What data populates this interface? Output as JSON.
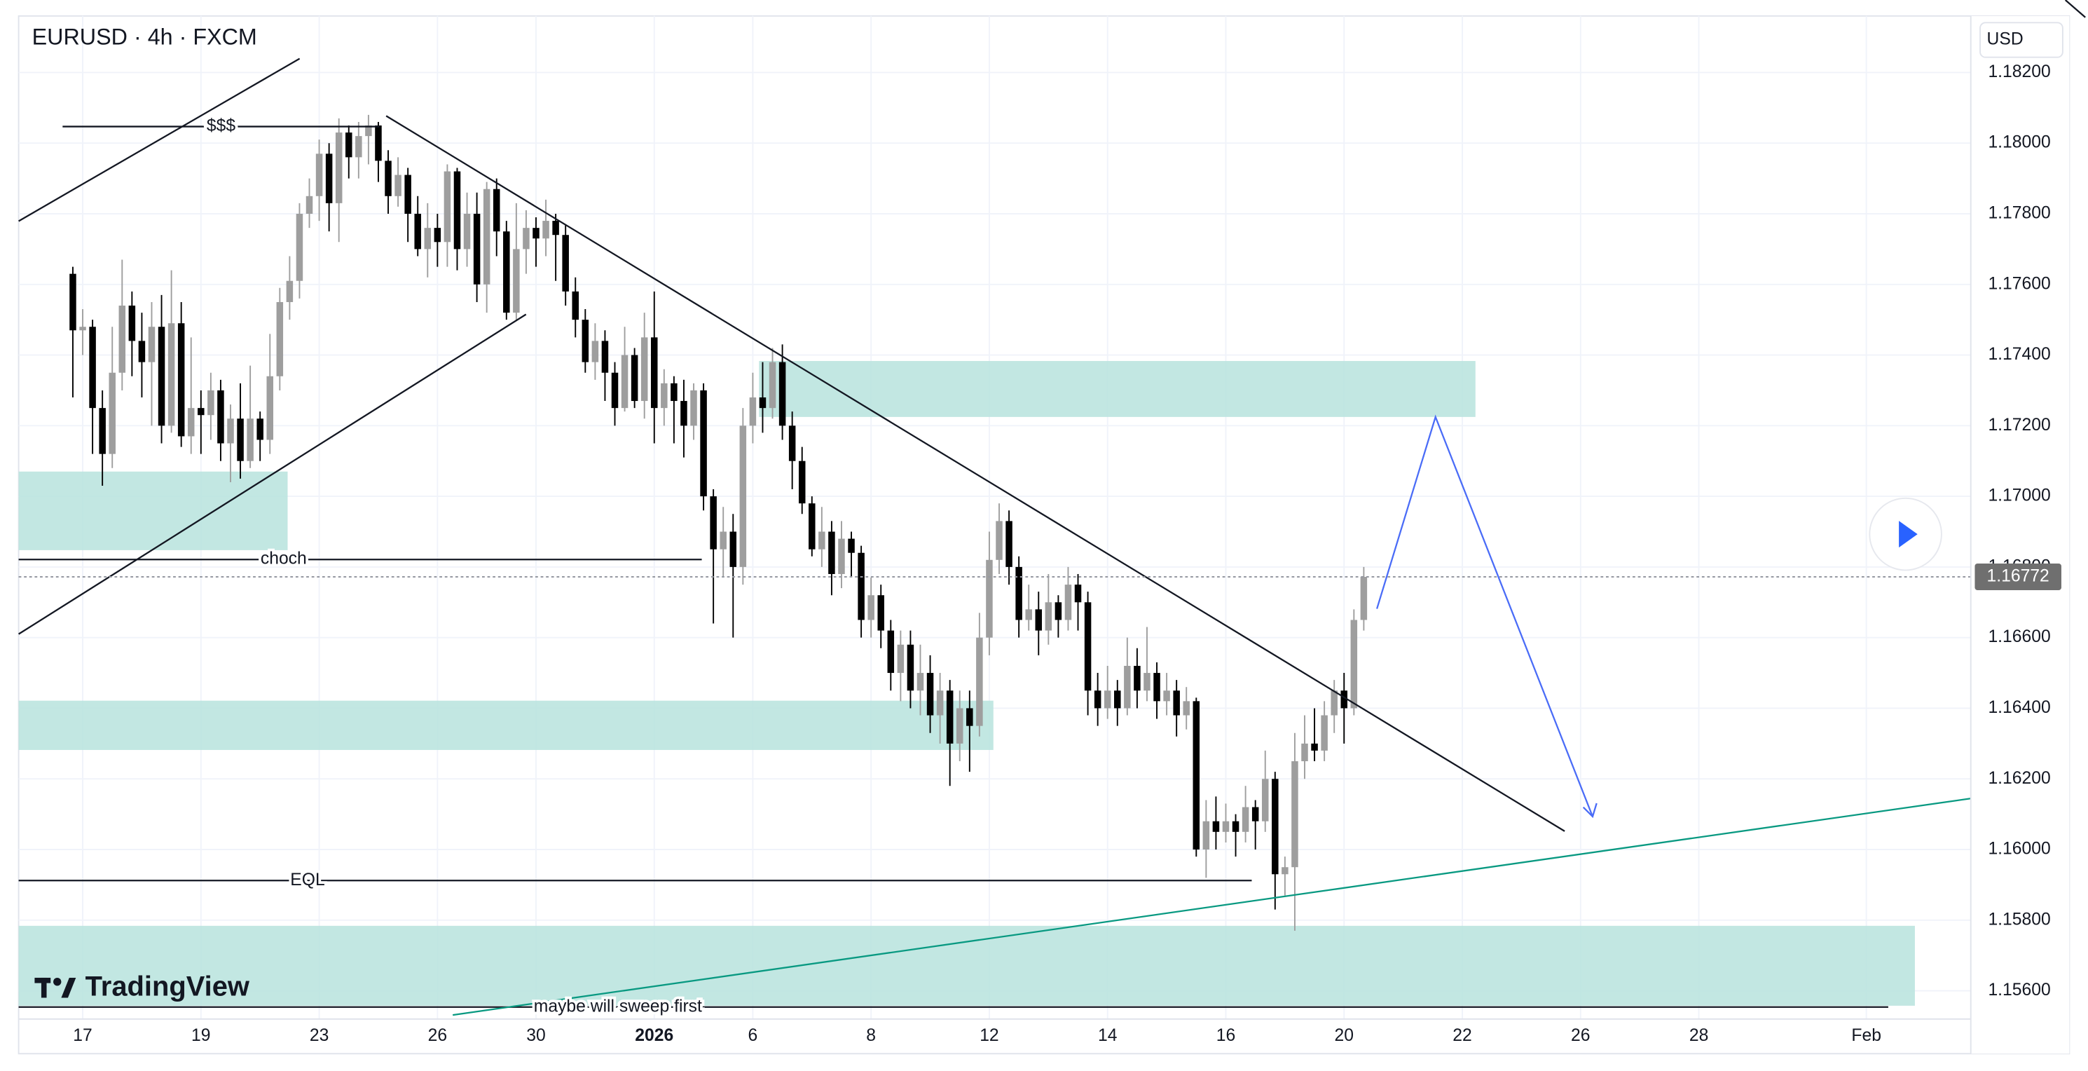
{
  "chart_data": {
    "type": "candlestick",
    "title": "EURUSD · 4h · FXCM",
    "currency": "USD",
    "watermark": "TradingView",
    "annotations": [
      "$$$",
      "choch",
      "EQL",
      "maybe will sweep first"
    ],
    "last_price": 1.16772,
    "up_color": "#9e9e9e",
    "down_color": "#000000",
    "grid": true,
    "xlim": [
      -5.5,
      192.6
    ],
    "xticks": [
      {
        "value": 1,
        "label": "17"
      },
      {
        "value": 13,
        "label": "19"
      },
      {
        "value": 25,
        "label": "23"
      },
      {
        "value": 37,
        "label": "26"
      },
      {
        "value": 47,
        "label": "30"
      },
      {
        "value": 59,
        "label": "2026"
      },
      {
        "value": 69,
        "label": "6"
      },
      {
        "value": 81,
        "label": "8"
      },
      {
        "value": 93,
        "label": "12"
      },
      {
        "value": 105,
        "label": "14"
      },
      {
        "value": 117,
        "label": "16"
      },
      {
        "value": 129,
        "label": "20"
      },
      {
        "value": 141,
        "label": "22"
      },
      {
        "value": 153,
        "label": "26"
      },
      {
        "value": 165,
        "label": "28"
      },
      {
        "value": 182,
        "label": "Feb"
      }
    ],
    "ylim": [
      1.1552,
      1.1836
    ],
    "yticks": [
      {
        "value": 1.182,
        "label": "1.18200"
      },
      {
        "value": 1.18,
        "label": "1.18000"
      },
      {
        "value": 1.178,
        "label": "1.17800"
      },
      {
        "value": 1.176,
        "label": "1.17600"
      },
      {
        "value": 1.174,
        "label": "1.17400"
      },
      {
        "value": 1.172,
        "label": "1.17200"
      },
      {
        "value": 1.17,
        "label": "1.17000"
      },
      {
        "value": 1.168,
        "label": "1.16800"
      },
      {
        "value": 1.166,
        "label": "1.16600"
      },
      {
        "value": 1.164,
        "label": "1.16400"
      },
      {
        "value": 1.162,
        "label": "1.16200"
      },
      {
        "value": 1.16,
        "label": "1.16000"
      },
      {
        "value": 1.158,
        "label": "1.15800"
      },
      {
        "value": 1.156,
        "label": "1.15600"
      }
    ],
    "ohlc": [
      [
        1.1763,
        1.1765,
        1.1728,
        1.1747
      ],
      [
        1.1747,
        1.1753,
        1.174,
        1.1748
      ],
      [
        1.1748,
        1.175,
        1.1712,
        1.1725
      ],
      [
        1.1725,
        1.173,
        1.1703,
        1.1712
      ],
      [
        1.1712,
        1.1748,
        1.1708,
        1.1735
      ],
      [
        1.1735,
        1.1767,
        1.173,
        1.1754
      ],
      [
        1.1754,
        1.1758,
        1.1734,
        1.1744
      ],
      [
        1.1744,
        1.1752,
        1.1728,
        1.1738
      ],
      [
        1.1738,
        1.1755,
        1.172,
        1.1748
      ],
      [
        1.1748,
        1.1757,
        1.1715,
        1.172
      ],
      [
        1.172,
        1.1764,
        1.1718,
        1.1749
      ],
      [
        1.1749,
        1.1755,
        1.1714,
        1.1717
      ],
      [
        1.1717,
        1.1745,
        1.1712,
        1.1725
      ],
      [
        1.1725,
        1.173,
        1.1712,
        1.1723
      ],
      [
        1.1723,
        1.1735,
        1.1716,
        1.173
      ],
      [
        1.173,
        1.1733,
        1.171,
        1.1715
      ],
      [
        1.1715,
        1.1726,
        1.1704,
        1.1722
      ],
      [
        1.1722,
        1.1732,
        1.1705,
        1.171
      ],
      [
        1.171,
        1.1737,
        1.1708,
        1.1722
      ],
      [
        1.1722,
        1.1724,
        1.171,
        1.1716
      ],
      [
        1.1716,
        1.1746,
        1.1712,
        1.1734
      ],
      [
        1.1734,
        1.1759,
        1.173,
        1.1755
      ],
      [
        1.1755,
        1.1768,
        1.175,
        1.1761
      ],
      [
        1.1761,
        1.1783,
        1.1756,
        1.178
      ],
      [
        1.178,
        1.179,
        1.1776,
        1.1785
      ],
      [
        1.1785,
        1.1801,
        1.1778,
        1.1797
      ],
      [
        1.1797,
        1.18,
        1.1775,
        1.1783
      ],
      [
        1.1783,
        1.1807,
        1.1772,
        1.1803
      ],
      [
        1.1803,
        1.1805,
        1.179,
        1.1796
      ],
      [
        1.1796,
        1.1806,
        1.179,
        1.1802
      ],
      [
        1.1802,
        1.1808,
        1.1794,
        1.1805
      ],
      [
        1.1805,
        1.1806,
        1.1789,
        1.1795
      ],
      [
        1.1795,
        1.1798,
        1.178,
        1.1785
      ],
      [
        1.1785,
        1.1796,
        1.1782,
        1.1791
      ],
      [
        1.1791,
        1.1793,
        1.1772,
        1.178
      ],
      [
        1.178,
        1.1785,
        1.1768,
        1.177
      ],
      [
        1.177,
        1.1783,
        1.1762,
        1.1776
      ],
      [
        1.1776,
        1.178,
        1.1765,
        1.1772
      ],
      [
        1.1772,
        1.1794,
        1.1765,
        1.1792
      ],
      [
        1.1792,
        1.1793,
        1.1764,
        1.177
      ],
      [
        1.177,
        1.1786,
        1.1765,
        1.178
      ],
      [
        1.178,
        1.1786,
        1.1755,
        1.176
      ],
      [
        1.176,
        1.1789,
        1.1752,
        1.1787
      ],
      [
        1.1787,
        1.179,
        1.1768,
        1.1775
      ],
      [
        1.1775,
        1.1778,
        1.175,
        1.1752
      ],
      [
        1.1752,
        1.1783,
        1.175,
        1.177
      ],
      [
        1.177,
        1.1781,
        1.1763,
        1.1776
      ],
      [
        1.1776,
        1.1779,
        1.1765,
        1.1773
      ],
      [
        1.1773,
        1.1784,
        1.1768,
        1.1778
      ],
      [
        1.1778,
        1.178,
        1.1761,
        1.1774
      ],
      [
        1.1774,
        1.1777,
        1.1754,
        1.1758
      ],
      [
        1.1758,
        1.1762,
        1.1745,
        1.175
      ],
      [
        1.175,
        1.1753,
        1.1735,
        1.1738
      ],
      [
        1.1738,
        1.1749,
        1.1733,
        1.1744
      ],
      [
        1.1744,
        1.1747,
        1.1727,
        1.1735
      ],
      [
        1.1735,
        1.1738,
        1.172,
        1.1725
      ],
      [
        1.1725,
        1.1748,
        1.1724,
        1.174
      ],
      [
        1.174,
        1.1742,
        1.1725,
        1.1727
      ],
      [
        1.1727,
        1.1752,
        1.1722,
        1.1745
      ],
      [
        1.1745,
        1.1758,
        1.1715,
        1.1725
      ],
      [
        1.1725,
        1.1736,
        1.172,
        1.1732
      ],
      [
        1.1732,
        1.1734,
        1.1715,
        1.1727
      ],
      [
        1.1727,
        1.1733,
        1.1711,
        1.172
      ],
      [
        1.172,
        1.1732,
        1.1716,
        1.173
      ],
      [
        1.173,
        1.1732,
        1.1696,
        1.17
      ],
      [
        1.17,
        1.1702,
        1.1664,
        1.1685
      ],
      [
        1.1685,
        1.1697,
        1.1677,
        1.169
      ],
      [
        1.169,
        1.1695,
        1.166,
        1.168
      ],
      [
        1.168,
        1.1725,
        1.1675,
        1.172
      ],
      [
        1.172,
        1.1735,
        1.1715,
        1.1728
      ],
      [
        1.1728,
        1.1738,
        1.1718,
        1.1725
      ],
      [
        1.1725,
        1.1742,
        1.1722,
        1.1738
      ],
      [
        1.1738,
        1.1743,
        1.1716,
        1.172
      ],
      [
        1.172,
        1.1724,
        1.1702,
        1.171
      ],
      [
        1.171,
        1.1714,
        1.1695,
        1.1698
      ],
      [
        1.1698,
        1.17,
        1.1683,
        1.1685
      ],
      [
        1.1685,
        1.1697,
        1.168,
        1.169
      ],
      [
        1.169,
        1.1693,
        1.1672,
        1.1678
      ],
      [
        1.1678,
        1.1693,
        1.1674,
        1.1688
      ],
      [
        1.1688,
        1.169,
        1.1677,
        1.1684
      ],
      [
        1.1684,
        1.1686,
        1.166,
        1.1665
      ],
      [
        1.1665,
        1.1677,
        1.166,
        1.1672
      ],
      [
        1.1672,
        1.1675,
        1.1657,
        1.1662
      ],
      [
        1.1662,
        1.1665,
        1.1645,
        1.165
      ],
      [
        1.165,
        1.1662,
        1.1642,
        1.1658
      ],
      [
        1.1658,
        1.1662,
        1.164,
        1.1645
      ],
      [
        1.1645,
        1.1658,
        1.1638,
        1.165
      ],
      [
        1.165,
        1.1655,
        1.1633,
        1.1638
      ],
      [
        1.1638,
        1.165,
        1.163,
        1.1645
      ],
      [
        1.1645,
        1.1648,
        1.1618,
        1.163
      ],
      [
        1.163,
        1.1645,
        1.1625,
        1.164
      ],
      [
        1.164,
        1.1645,
        1.1622,
        1.1635
      ],
      [
        1.1635,
        1.1667,
        1.1632,
        1.166
      ],
      [
        1.166,
        1.169,
        1.1655,
        1.1682
      ],
      [
        1.1682,
        1.1698,
        1.1678,
        1.1693
      ],
      [
        1.1693,
        1.1696,
        1.1675,
        1.168
      ],
      [
        1.168,
        1.1683,
        1.166,
        1.1665
      ],
      [
        1.1665,
        1.1675,
        1.1662,
        1.1668
      ],
      [
        1.1668,
        1.1673,
        1.1655,
        1.1662
      ],
      [
        1.1662,
        1.1678,
        1.1658,
        1.167
      ],
      [
        1.167,
        1.1672,
        1.166,
        1.1665
      ],
      [
        1.1665,
        1.168,
        1.1662,
        1.1675
      ],
      [
        1.1675,
        1.1678,
        1.1662,
        1.167
      ],
      [
        1.167,
        1.1673,
        1.1638,
        1.1645
      ],
      [
        1.1645,
        1.165,
        1.1635,
        1.164
      ],
      [
        1.164,
        1.1652,
        1.1637,
        1.1645
      ],
      [
        1.1645,
        1.1648,
        1.1635,
        1.164
      ],
      [
        1.164,
        1.166,
        1.1638,
        1.1652
      ],
      [
        1.1652,
        1.1657,
        1.164,
        1.1645
      ],
      [
        1.1645,
        1.1663,
        1.1642,
        1.165
      ],
      [
        1.165,
        1.1653,
        1.1637,
        1.1642
      ],
      [
        1.1642,
        1.165,
        1.1638,
        1.1645
      ],
      [
        1.1645,
        1.1648,
        1.1632,
        1.1638
      ],
      [
        1.1638,
        1.1646,
        1.1634,
        1.1642
      ],
      [
        1.1642,
        1.1643,
        1.1598,
        1.16
      ],
      [
        1.16,
        1.1614,
        1.1592,
        1.1608
      ],
      [
        1.1608,
        1.1615,
        1.16,
        1.1605
      ],
      [
        1.1605,
        1.1613,
        1.1602,
        1.1608
      ],
      [
        1.1608,
        1.161,
        1.1598,
        1.1605
      ],
      [
        1.1605,
        1.1618,
        1.1602,
        1.1612
      ],
      [
        1.1612,
        1.1614,
        1.16,
        1.1608
      ],
      [
        1.1608,
        1.1628,
        1.1605,
        1.162
      ],
      [
        1.162,
        1.1622,
        1.1583,
        1.1593
      ],
      [
        1.1593,
        1.1598,
        1.1587,
        1.1595
      ],
      [
        1.1595,
        1.1633,
        1.1577,
        1.1625
      ],
      [
        1.1625,
        1.1638,
        1.162,
        1.163
      ],
      [
        1.163,
        1.164,
        1.1625,
        1.1628
      ],
      [
        1.1628,
        1.1642,
        1.1625,
        1.1638
      ],
      [
        1.1638,
        1.1648,
        1.1633,
        1.1645
      ],
      [
        1.1645,
        1.165,
        1.163,
        1.164
      ],
      [
        1.164,
        1.1668,
        1.1638,
        1.1665
      ],
      [
        1.1665,
        1.168,
        1.1662,
        1.16772
      ]
    ]
  }
}
